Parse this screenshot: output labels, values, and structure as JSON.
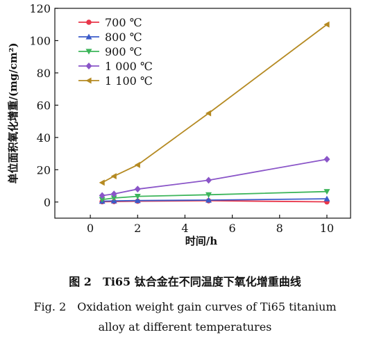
{
  "chart_data": {
    "type": "line",
    "title": "",
    "xlabel": "时间/h",
    "ylabel": "单位面积氧化增重/(mg/cm²)",
    "xlim": [
      -1.5,
      11
    ],
    "ylim": [
      -10,
      120
    ],
    "xticks": [
      0,
      2,
      4,
      6,
      8,
      10
    ],
    "yticks": [
      0,
      20,
      40,
      60,
      80,
      100,
      120
    ],
    "grid": false,
    "legend": "top-left",
    "series": [
      {
        "name": "700 ℃",
        "color": "#e8364a",
        "marker": "circle",
        "x": [
          0.5,
          1,
          2,
          5,
          10
        ],
        "y": [
          0.2,
          0.3,
          0.5,
          0.8,
          0.1
        ]
      },
      {
        "name": "800 ℃",
        "color": "#3b5bc9",
        "marker": "triangle-up",
        "x": [
          0.5,
          1,
          2,
          5,
          10
        ],
        "y": [
          0.5,
          0.7,
          0.9,
          1.2,
          2.0
        ]
      },
      {
        "name": "900 ℃",
        "color": "#3cb55a",
        "marker": "triangle-down",
        "x": [
          0.5,
          1,
          2,
          5,
          10
        ],
        "y": [
          1.5,
          2.5,
          3.5,
          4.5,
          6.5
        ]
      },
      {
        "name": "1 000 ℃",
        "color": "#8a55c8",
        "marker": "diamond",
        "x": [
          0.5,
          1,
          2,
          5,
          10
        ],
        "y": [
          4.0,
          5.0,
          8.0,
          13.5,
          26.5
        ]
      },
      {
        "name": "1 100 ℃",
        "color": "#b58a22",
        "marker": "triangle-left",
        "x": [
          0.5,
          1,
          2,
          5,
          10
        ],
        "y": [
          12.0,
          16.0,
          23.0,
          55.0,
          110.0
        ]
      }
    ]
  },
  "caption": {
    "zh": "图 2　Ti65 钛合金在不同温度下氧化增重曲线",
    "en_line1": "Fig. 2　Oxidation weight gain curves of Ti65 titanium",
    "en_line2": "alloy at different temperatures"
  }
}
